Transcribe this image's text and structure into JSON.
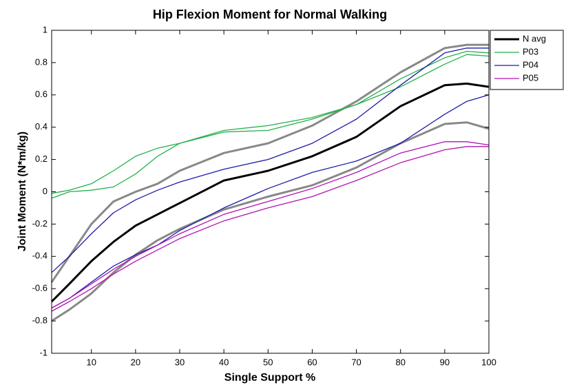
{
  "chart_data": {
    "type": "line",
    "title": "Hip Flexion Moment for Normal Walking",
    "x_label": "Single Support %",
    "y_label": "Joint Moment (N*m/kg)",
    "x": [
      1,
      5,
      10,
      15,
      20,
      25,
      30,
      40,
      50,
      60,
      70,
      80,
      90,
      95,
      100
    ],
    "series": [
      {
        "color": "#888888",
        "width": 3,
        "values": [
          -0.56,
          -0.4,
          -0.2,
          -0.06,
          0.0,
          0.05,
          0.13,
          0.24,
          0.3,
          0.41,
          0.56,
          0.74,
          0.89,
          0.91,
          0.91
        ]
      },
      {
        "color": "#888888",
        "width": 3,
        "values": [
          -0.8,
          -0.73,
          -0.63,
          -0.5,
          -0.39,
          -0.3,
          -0.23,
          -0.11,
          -0.03,
          0.04,
          0.15,
          0.3,
          0.42,
          0.43,
          0.39
        ]
      },
      {
        "color": "#22b04a",
        "width": 1.3,
        "values": [
          -0.04,
          0.0,
          0.01,
          0.03,
          0.11,
          0.22,
          0.3,
          0.37,
          0.38,
          0.45,
          0.54,
          0.65,
          0.79,
          0.85,
          0.84
        ]
      },
      {
        "color": "#1a1aa8",
        "width": 1.3,
        "values": [
          -0.72,
          -0.66,
          -0.56,
          -0.46,
          -0.39,
          -0.33,
          -0.24,
          -0.1,
          0.02,
          0.12,
          0.19,
          0.3,
          0.48,
          0.56,
          0.6
        ]
      },
      {
        "color": "#b012b0",
        "width": 1.3,
        "values": [
          -0.74,
          -0.68,
          -0.6,
          -0.51,
          -0.43,
          -0.36,
          -0.29,
          -0.18,
          -0.1,
          -0.03,
          0.07,
          0.18,
          0.26,
          0.28,
          0.28
        ]
      },
      {
        "name": "N avg",
        "color": "#000000",
        "width": 3,
        "values": [
          -0.68,
          -0.57,
          -0.43,
          -0.31,
          -0.21,
          -0.14,
          -0.07,
          0.07,
          0.13,
          0.22,
          0.34,
          0.53,
          0.66,
          0.67,
          0.65
        ]
      },
      {
        "name": "P03",
        "color": "#22b04a",
        "width": 1.3,
        "values": [
          -0.01,
          0.01,
          0.05,
          0.13,
          0.22,
          0.27,
          0.3,
          0.38,
          0.41,
          0.46,
          0.54,
          0.7,
          0.83,
          0.87,
          0.86
        ]
      },
      {
        "name": "P04",
        "color": "#1a1aa8",
        "width": 1.3,
        "values": [
          -0.5,
          -0.4,
          -0.26,
          -0.13,
          -0.05,
          0.01,
          0.06,
          0.14,
          0.2,
          0.3,
          0.45,
          0.66,
          0.86,
          0.89,
          0.89
        ]
      },
      {
        "name": "P05",
        "color": "#b012b0",
        "width": 1.3,
        "values": [
          -0.72,
          -0.66,
          -0.57,
          -0.48,
          -0.4,
          -0.33,
          -0.26,
          -0.14,
          -0.06,
          0.02,
          0.12,
          0.24,
          0.31,
          0.31,
          0.29
        ]
      }
    ],
    "xlim": [
      1,
      100
    ],
    "xticks": [
      10,
      20,
      30,
      40,
      50,
      60,
      70,
      80,
      90,
      100
    ],
    "ylim": [
      -1,
      1
    ],
    "yticks": [
      -1,
      -0.8,
      -0.6,
      -0.4,
      -0.2,
      0,
      0.2,
      0.4,
      0.6,
      0.8,
      1
    ],
    "grid": false,
    "legend": "outside-right"
  }
}
